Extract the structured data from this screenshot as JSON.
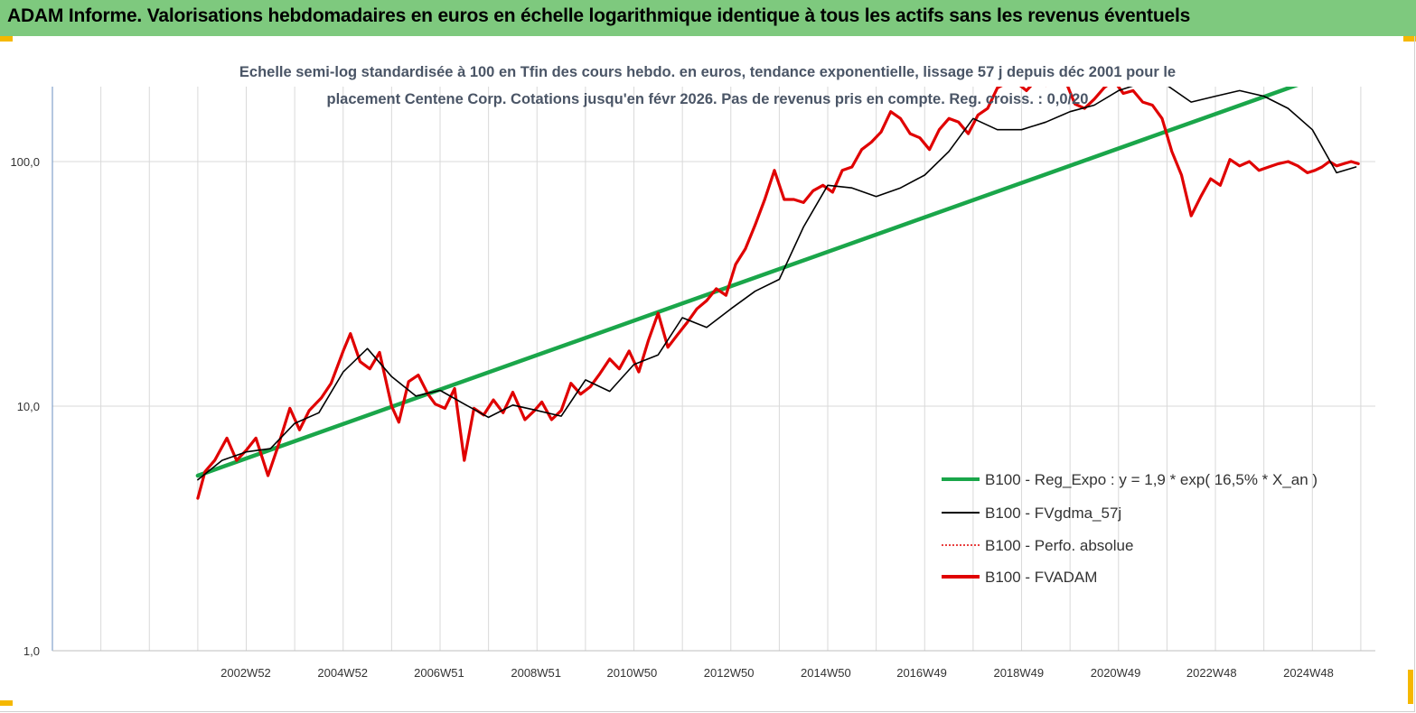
{
  "banner": {
    "title": "ADAM Informe. Valorisations hebdomadaires en euros en échelle logarithmique identique à tous les actifs sans les revenus éventuels",
    "background": "#7ec97e",
    "corner_color": "#f5b800"
  },
  "chart_data": {
    "type": "line",
    "title_line1": "Echelle semi-log standardisée à 100 en Tfin des cours hebdo. en euros, tendance exponentielle, lissage 57 j depuis déc 2001 pour le",
    "title_line2": "placement Centene Corp. Cotations jusqu'en févr 2026. Pas de revenus pris en compte. Reg. croiss. : 0,0/20",
    "y_scale": "log",
    "ylim": [
      1,
      200
    ],
    "y_ticks": [
      1,
      10,
      100
    ],
    "y_tick_labels": [
      "1,0",
      "10,0",
      "100,0"
    ],
    "x_tick_labels": [
      "2002W52",
      "2004W52",
      "2006W51",
      "2008W51",
      "2010W50",
      "2012W50",
      "2014W50",
      "2016W49",
      "2018W49",
      "2020W49",
      "2022W48",
      "2024W48"
    ],
    "x_tick_years": [
      2002.99,
      2004.99,
      2006.98,
      2008.98,
      2010.96,
      2012.96,
      2014.96,
      2016.94,
      2018.94,
      2020.94,
      2022.92,
      2024.92
    ],
    "xlim": [
      1999.0,
      2026.3
    ],
    "grid": true,
    "legend_position": "bottom-right",
    "series": [
      {
        "name": "B100 - Reg_Expo : y = 1,9 * exp( 16,5% *  X_an )",
        "color": "#1aa64a",
        "style": "solid-thick",
        "x": [
          2002.0,
          2024.7
        ],
        "y": [
          5.2,
          206
        ]
      },
      {
        "name": "B100 - FVgdma_57j",
        "color": "#000000",
        "style": "solid-thin",
        "x": [
          2002.0,
          2002.5,
          2003.0,
          2003.5,
          2004.0,
          2004.5,
          2005.0,
          2005.5,
          2006.0,
          2006.5,
          2007.0,
          2007.5,
          2008.0,
          2008.5,
          2009.0,
          2009.5,
          2010.0,
          2010.5,
          2011.0,
          2011.5,
          2012.0,
          2012.5,
          2013.0,
          2013.5,
          2014.0,
          2014.5,
          2015.0,
          2015.5,
          2016.0,
          2016.5,
          2017.0,
          2017.5,
          2018.0,
          2018.5,
          2019.0,
          2019.5,
          2020.0,
          2020.5,
          2021.0,
          2021.5,
          2022.0,
          2022.5,
          2023.0,
          2023.5,
          2024.0,
          2024.5,
          2025.0,
          2025.5,
          2025.9
        ],
        "y": [
          5.0,
          6.0,
          6.5,
          6.7,
          8.5,
          9.4,
          13.8,
          17.2,
          13.2,
          11.0,
          11.6,
          10.2,
          9.0,
          10.1,
          9.6,
          9.1,
          12.8,
          11.5,
          14.8,
          16.2,
          23.0,
          21.0,
          25.0,
          29.5,
          33.0,
          54.0,
          80.0,
          78.0,
          72.0,
          78.0,
          88.0,
          110.0,
          150.0,
          135.0,
          135.0,
          145.0,
          160.0,
          170.0,
          195.0,
          210.0,
          205.0,
          175.0,
          185.0,
          195.0,
          185.0,
          165.0,
          135.0,
          90.0,
          95.0
        ]
      },
      {
        "name": "B100 - Perfo. absolue",
        "color": "#e00000",
        "style": "dotted",
        "x": [],
        "y": []
      },
      {
        "name": "B100 - FVADAM",
        "color": "#e00000",
        "style": "solid-thick",
        "x": [
          2002.0,
          2002.15,
          2002.35,
          2002.6,
          2002.8,
          2003.0,
          2003.2,
          2003.45,
          2003.65,
          2003.9,
          2004.1,
          2004.3,
          2004.55,
          2004.75,
          2005.0,
          2005.15,
          2005.35,
          2005.55,
          2005.75,
          2006.0,
          2006.15,
          2006.35,
          2006.55,
          2006.75,
          2006.9,
          2007.1,
          2007.3,
          2007.5,
          2007.7,
          2007.9,
          2008.1,
          2008.3,
          2008.5,
          2008.75,
          2008.95,
          2009.1,
          2009.3,
          2009.5,
          2009.7,
          2009.9,
          2010.1,
          2010.3,
          2010.5,
          2010.7,
          2010.9,
          2011.1,
          2011.3,
          2011.5,
          2011.7,
          2011.9,
          2012.1,
          2012.3,
          2012.5,
          2012.7,
          2012.9,
          2013.1,
          2013.3,
          2013.5,
          2013.7,
          2013.9,
          2014.1,
          2014.3,
          2014.5,
          2014.7,
          2014.9,
          2015.1,
          2015.3,
          2015.5,
          2015.7,
          2015.9,
          2016.1,
          2016.3,
          2016.5,
          2016.7,
          2016.9,
          2017.1,
          2017.3,
          2017.5,
          2017.7,
          2017.9,
          2018.1,
          2018.3,
          2018.5,
          2018.7,
          2018.9,
          2019.1,
          2019.3,
          2019.5,
          2019.7,
          2019.9,
          2020.1,
          2020.3,
          2020.5,
          2020.7,
          2020.9,
          2021.1,
          2021.3,
          2021.5,
          2021.7,
          2021.9,
          2022.1,
          2022.3,
          2022.5,
          2022.7,
          2022.9,
          2023.1,
          2023.3,
          2023.5,
          2023.7,
          2023.9,
          2024.1,
          2024.3,
          2024.5,
          2024.7,
          2024.9,
          2025.05,
          2025.2,
          2025.35,
          2025.5,
          2025.65,
          2025.8,
          2025.95
        ],
        "y": [
          4.2,
          5.4,
          6.0,
          7.4,
          6.0,
          6.6,
          7.4,
          5.2,
          6.8,
          9.8,
          8.0,
          9.6,
          10.8,
          12.4,
          16.8,
          19.8,
          15.2,
          14.2,
          16.6,
          10.0,
          8.6,
          12.6,
          13.4,
          11.2,
          10.2,
          9.8,
          11.8,
          6.0,
          9.8,
          9.2,
          10.6,
          9.4,
          11.4,
          8.8,
          9.6,
          10.4,
          8.8,
          9.6,
          12.4,
          11.2,
          12.0,
          13.6,
          15.6,
          14.2,
          16.8,
          13.8,
          18.6,
          24.0,
          17.4,
          19.6,
          22.0,
          25.0,
          27.0,
          30.2,
          28.4,
          38.0,
          44.0,
          55.0,
          70.0,
          92.0,
          70.0,
          70.0,
          68.0,
          76.0,
          80.0,
          75.0,
          92.0,
          95.0,
          112.0,
          120.0,
          132.0,
          160.0,
          150.0,
          130.0,
          125.0,
          112.0,
          135.0,
          150.0,
          145.0,
          130.0,
          155.0,
          165.0,
          200.0,
          210.0,
          210.0,
          195.0,
          215.0,
          205.0,
          225.0,
          215.0,
          172.0,
          165.0,
          180.0,
          200.0,
          215.0,
          190.0,
          195.0,
          175.0,
          170.0,
          150.0,
          110.0,
          88.0,
          60.0,
          72.0,
          85.0,
          80.0,
          102.0,
          96.0,
          100.0,
          92.0,
          95.0,
          98.0,
          100.0,
          96.0,
          90.0,
          92.0,
          95.0,
          100.0,
          96.0,
          98.0,
          100.0,
          98.0
        ]
      }
    ]
  }
}
